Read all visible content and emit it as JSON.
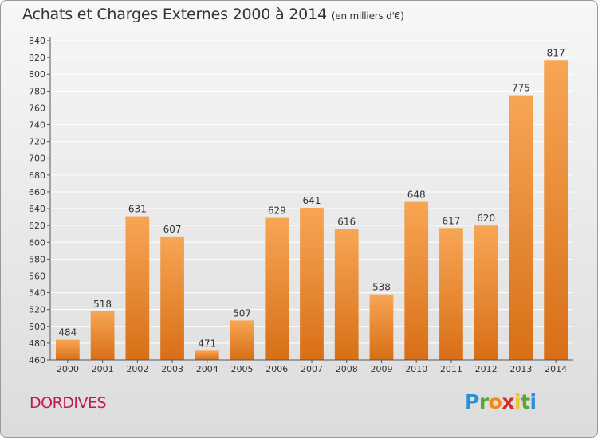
{
  "title": "Achats et Charges Externes 2000 à 2014",
  "subtitle": "(en milliers d'€)",
  "commune": "DORDIVES",
  "logo": {
    "text": "Proxiti",
    "letters": [
      "P",
      "r",
      "o",
      "x",
      "i",
      "t",
      "i"
    ],
    "colors": [
      "#2f8fd6",
      "#5aa638",
      "#f08a1c",
      "#d62b2b",
      "#f1c232",
      "#5aa638",
      "#2f8fd6"
    ]
  },
  "colors": {
    "bar_top": "#f7a655",
    "bar_bottom": "#d86f16",
    "grid": "#ffffff",
    "axis": "#555555",
    "text": "#333333",
    "commune": "#c2185b"
  },
  "chart_data": {
    "type": "bar",
    "title": "Achats et Charges Externes 2000 à 2014",
    "subtitle": "(en milliers d'€)",
    "categories": [
      "2000",
      "2001",
      "2002",
      "2003",
      "2004",
      "2005",
      "2006",
      "2007",
      "2008",
      "2009",
      "2010",
      "2011",
      "2012",
      "2013",
      "2014"
    ],
    "values": [
      484,
      518,
      631,
      607,
      471,
      507,
      629,
      641,
      616,
      538,
      648,
      617,
      620,
      775,
      817
    ],
    "ylim": [
      460,
      840
    ],
    "yticks": [
      460,
      480,
      500,
      520,
      540,
      560,
      580,
      600,
      620,
      640,
      660,
      680,
      700,
      720,
      740,
      760,
      780,
      800,
      820,
      840
    ],
    "grid": true,
    "xlabel": "",
    "ylabel": ""
  }
}
